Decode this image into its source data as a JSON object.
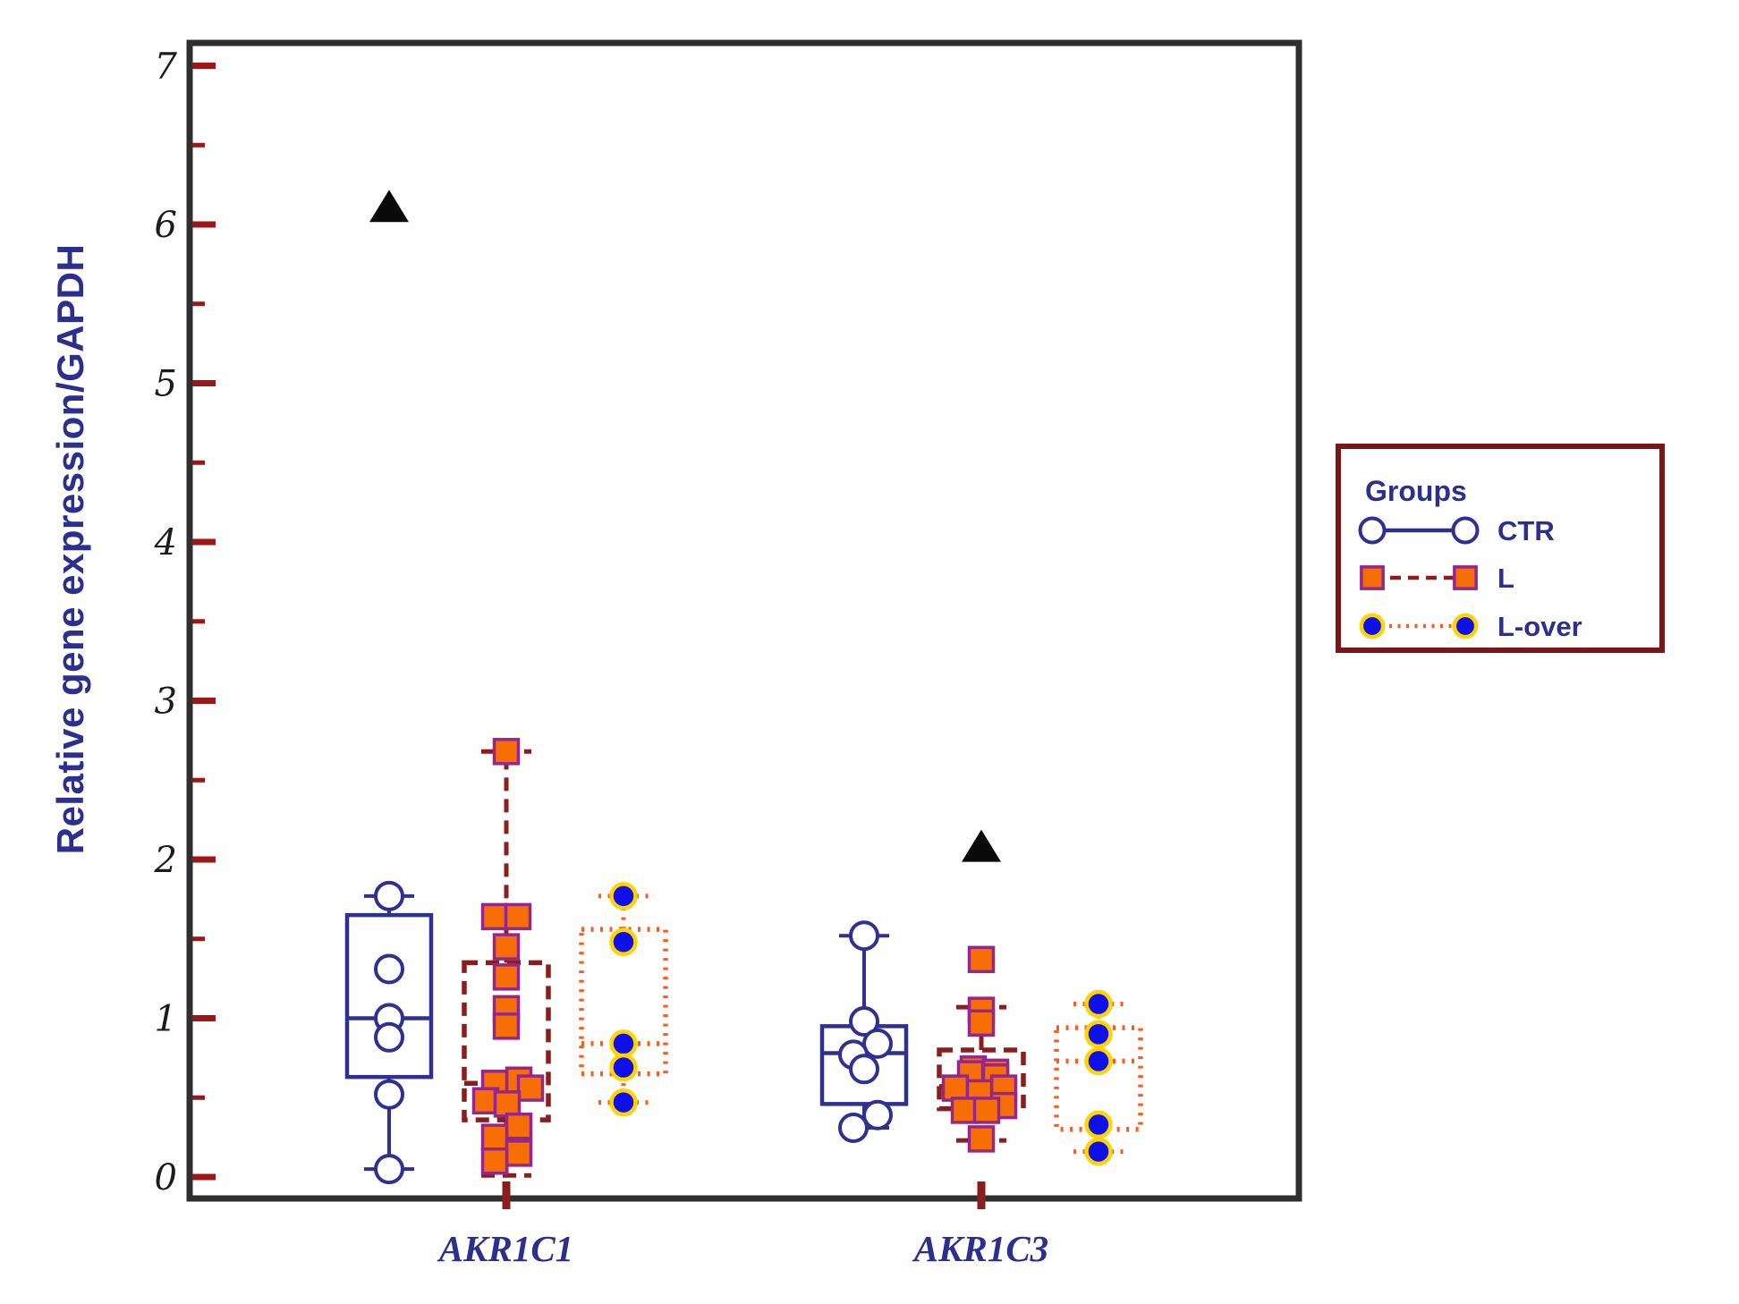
{
  "figure": {
    "background": "#ffffff",
    "frame_color": "#2f2f2f",
    "major_tick_color": "#9e1616",
    "x_tick_color": "#8c1d1d",
    "tick_label_color": "#1b1b1b",
    "blue_text_color": "#2b2f8e",
    "legend_border_color": "#7a1518",
    "triangle_color": "#0a0a0a"
  },
  "chart_data": {
    "type": "boxplot",
    "title": "",
    "xlabel": "",
    "ylabel": "Relative gene expression/GAPDH",
    "ylim": [
      0,
      7
    ],
    "yticks_major": [
      0,
      1,
      2,
      3,
      4,
      5,
      6,
      7
    ],
    "yticks_minor": [
      0.5,
      1.5,
      2.5,
      3.5,
      4.5,
      5.5,
      6.5
    ],
    "grid": "off",
    "categories": [
      "AKR1C1",
      "AKR1C3"
    ],
    "legend": {
      "title": "Groups",
      "position": "right-outside",
      "entries": [
        {
          "label": "CTR",
          "series": "CTR",
          "marker": "open-circle",
          "line": "solid",
          "line_color": "#2e3192",
          "marker_fill": "#ffffff",
          "marker_stroke": "#2e3192"
        },
        {
          "label": "L",
          "series": "L",
          "marker": "filled-square",
          "line": "dashed",
          "line_color": "#8c1d1d",
          "marker_fill": "#f86e06",
          "marker_stroke": "#93278f"
        },
        {
          "label": "L-over",
          "series": "L-over",
          "marker": "filled-circle",
          "line": "dotted",
          "line_color": "#ff5a1e",
          "marker_fill": "#0f0fe8",
          "marker_stroke": "#ffd400"
        }
      ]
    },
    "groups": [
      {
        "category": "AKR1C1",
        "series": "CTR",
        "box": {
          "q1": 0.63,
          "median": 1.0,
          "q3": 1.65,
          "whisker_low": 0.05,
          "whisker_high": 1.77
        },
        "points": [
          {
            "dx": 0,
            "v": 1.77
          },
          {
            "dx": 0,
            "v": 1.31
          },
          {
            "dx": 0,
            "v": 1.0
          },
          {
            "dx": 0,
            "v": 0.88
          },
          {
            "dx": 0,
            "v": 0.52
          },
          {
            "dx": 0,
            "v": 0.05
          }
        ]
      },
      {
        "category": "AKR1C1",
        "series": "L",
        "box": {
          "q1": 0.36,
          "median": 0.59,
          "q3": 1.35,
          "whisker_low": 0.01,
          "whisker_high": 2.68
        },
        "points": [
          {
            "dx": 0,
            "v": 2.68
          },
          {
            "dx": -13,
            "v": 1.64
          },
          {
            "dx": 13,
            "v": 1.64
          },
          {
            "dx": 0,
            "v": 1.45
          },
          {
            "dx": 0,
            "v": 1.26
          },
          {
            "dx": 0,
            "v": 1.06
          },
          {
            "dx": 0,
            "v": 0.95
          },
          {
            "dx": 14,
            "v": 0.61
          },
          {
            "dx": -13,
            "v": 0.59
          },
          {
            "dx": 27,
            "v": 0.56
          },
          {
            "dx": -23,
            "v": 0.48
          },
          {
            "dx": 1,
            "v": 0.46
          },
          {
            "dx": 14,
            "v": 0.32
          },
          {
            "dx": -13,
            "v": 0.25
          },
          {
            "dx": 14,
            "v": 0.15
          },
          {
            "dx": -13,
            "v": 0.1
          }
        ]
      },
      {
        "category": "AKR1C1",
        "series": "L-over",
        "box": {
          "q1": 0.65,
          "median": 0.84,
          "q3": 1.56,
          "whisker_low": 0.47,
          "whisker_high": 1.77
        },
        "points": [
          {
            "dx": 0,
            "v": 1.77
          },
          {
            "dx": 0,
            "v": 1.48
          },
          {
            "dx": 0,
            "v": 0.84
          },
          {
            "dx": 0,
            "v": 0.69
          },
          {
            "dx": 0,
            "v": 0.47
          }
        ]
      },
      {
        "category": "AKR1C3",
        "series": "CTR",
        "box": {
          "q1": 0.46,
          "median": 0.78,
          "q3": 0.95,
          "whisker_low": 0.31,
          "whisker_high": 1.52
        },
        "points": [
          {
            "dx": 0,
            "v": 1.52
          },
          {
            "dx": 0,
            "v": 0.98
          },
          {
            "dx": 15,
            "v": 0.84
          },
          {
            "dx": -12,
            "v": 0.77
          },
          {
            "dx": 0,
            "v": 0.68
          },
          {
            "dx": 15,
            "v": 0.39
          },
          {
            "dx": -12,
            "v": 0.31
          }
        ]
      },
      {
        "category": "AKR1C3",
        "series": "L",
        "box": {
          "q1": 0.43,
          "median": 0.57,
          "q3": 0.8,
          "whisker_low": 0.23,
          "whisker_high": 1.07
        },
        "points": [
          {
            "dx": 0,
            "v": 1.37
          },
          {
            "dx": 0,
            "v": 1.05
          },
          {
            "dx": 0,
            "v": 0.97
          },
          {
            "dx": -9,
            "v": 0.68
          },
          {
            "dx": 16,
            "v": 0.66
          },
          {
            "dx": -12,
            "v": 0.65
          },
          {
            "dx": 16,
            "v": 0.63
          },
          {
            "dx": -29,
            "v": 0.56
          },
          {
            "dx": 25,
            "v": 0.56
          },
          {
            "dx": -2,
            "v": 0.53
          },
          {
            "dx": 25,
            "v": 0.45
          },
          {
            "dx": -19,
            "v": 0.42
          },
          {
            "dx": 6,
            "v": 0.42
          },
          {
            "dx": 0,
            "v": 0.24
          }
        ]
      },
      {
        "category": "AKR1C3",
        "series": "L-over",
        "box": {
          "q1": 0.3,
          "median": 0.73,
          "q3": 0.94,
          "whisker_low": 0.16,
          "whisker_high": 1.09
        },
        "points": [
          {
            "dx": 0,
            "v": 1.09
          },
          {
            "dx": 0,
            "v": 0.9
          },
          {
            "dx": 0,
            "v": 0.73
          },
          {
            "dx": 0,
            "v": 0.33
          },
          {
            "dx": 0,
            "v": 0.16
          }
        ]
      }
    ],
    "significance_markers": [
      {
        "category": "AKR1C1",
        "series": "CTR",
        "value": 6.1,
        "symbol": "black-triangle"
      },
      {
        "category": "AKR1C3",
        "series": "L",
        "value": 2.07,
        "symbol": "black-triangle"
      }
    ]
  }
}
